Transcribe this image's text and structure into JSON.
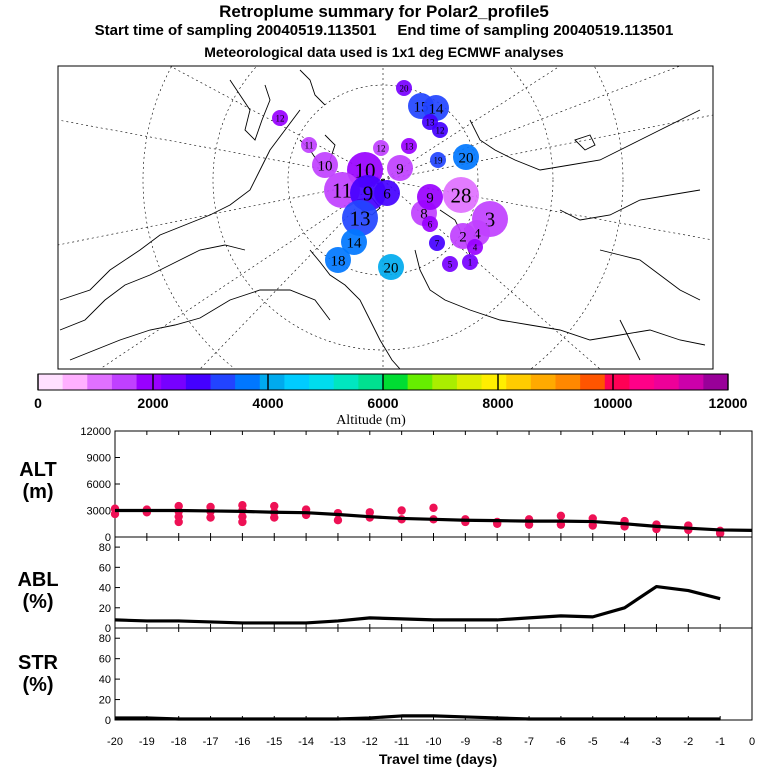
{
  "title": "Retroplume summary for Polar2_profile5",
  "sampling": {
    "start": "Start time of sampling 20040519.113501",
    "end": "End time of sampling 20040519.113501"
  },
  "met_note": "Meteorological data used is 1x1 deg ECMWF analyses",
  "colorbar": {
    "label": "Altitude (m)",
    "ticks": [
      "0",
      "2000",
      "4000",
      "6000",
      "8000",
      "10000",
      "12000"
    ],
    "colors": [
      "#ffe0ff",
      "#ffb0ff",
      "#e070ff",
      "#c040ff",
      "#9900ff",
      "#7700ff",
      "#4400ff",
      "#2244ff",
      "#0077ff",
      "#00aaee",
      "#00ccff",
      "#00ddee",
      "#00e6c0",
      "#00e090",
      "#00dd33",
      "#66ee00",
      "#aaee00",
      "#ddee00",
      "#ffee00",
      "#ffcc00",
      "#ffaa00",
      "#ff8800",
      "#ff5500",
      "#ff0055",
      "#ff0088",
      "#ee0099",
      "#cc00aa",
      "#990099"
    ]
  },
  "map": {
    "clusters": [
      {
        "label": "20",
        "alt": 2200,
        "size": "s"
      },
      {
        "label": "15",
        "alt": 3000,
        "size": "m"
      },
      {
        "label": "14",
        "alt": 3200,
        "size": "m"
      },
      {
        "label": "13",
        "alt": 2600,
        "size": "s"
      },
      {
        "label": "12",
        "alt": 2800,
        "size": "s"
      },
      {
        "label": "10",
        "alt": 1600,
        "size": "m"
      },
      {
        "label": "19",
        "alt": 3400,
        "size": "s"
      },
      {
        "label": "20",
        "alt": 3600,
        "size": "m"
      },
      {
        "label": "10",
        "alt": 1800,
        "size": "l"
      },
      {
        "label": "9",
        "alt": 1700,
        "size": "m"
      },
      {
        "label": "11",
        "alt": 1700,
        "size": "l"
      },
      {
        "label": "9",
        "alt": 2600,
        "size": "l"
      },
      {
        "label": "6",
        "alt": 2700,
        "size": "m"
      },
      {
        "label": "13",
        "alt": 3000,
        "size": "l"
      },
      {
        "label": "14",
        "alt": 3700,
        "size": "m"
      },
      {
        "label": "18",
        "alt": 3800,
        "size": "m"
      },
      {
        "label": "20",
        "alt": 3900,
        "size": "m"
      },
      {
        "label": "8",
        "alt": 1600,
        "size": "m"
      },
      {
        "label": "9",
        "alt": 1800,
        "size": "m"
      },
      {
        "label": "28",
        "alt": 1200,
        "size": "l"
      },
      {
        "label": "3",
        "alt": 1300,
        "size": "l"
      },
      {
        "label": "4",
        "alt": 1400,
        "size": "m"
      },
      {
        "label": "2",
        "alt": 1600,
        "size": "m"
      },
      {
        "label": "4",
        "alt": 2000,
        "size": "s"
      },
      {
        "label": "1",
        "alt": 2200,
        "size": "s"
      },
      {
        "label": "5",
        "alt": 2400,
        "size": "s"
      },
      {
        "label": "7",
        "alt": 2600,
        "size": "s"
      },
      {
        "label": "6",
        "alt": 1800,
        "size": "s"
      },
      {
        "label": "12",
        "alt": 1700,
        "size": "s"
      },
      {
        "label": "13",
        "alt": 1800,
        "size": "s"
      },
      {
        "label": "11",
        "alt": 1700,
        "size": "s"
      },
      {
        "label": "12",
        "alt": 1800,
        "size": "s"
      }
    ]
  },
  "chart_data": [
    {
      "type": "line",
      "title": "ALT (m)",
      "xlabel": "Travel time (days)",
      "x": [
        -20,
        -19,
        -18,
        -17,
        -16,
        -15,
        -14,
        -13,
        -12,
        -11,
        -10,
        -9,
        -8,
        -7,
        -6,
        -5,
        -4,
        -3,
        -2,
        -1,
        0
      ],
      "series": [
        {
          "name": "mean altitude",
          "values": [
            3000,
            3000,
            3000,
            2950,
            2900,
            2800,
            2750,
            2550,
            2300,
            2100,
            2000,
            1900,
            1850,
            1800,
            1800,
            1750,
            1500,
            1200,
            1000,
            800,
            750
          ]
        },
        {
          "name": "cluster altitudes",
          "type": "scatter",
          "points": [
            [
              -20,
              3200
            ],
            [
              -20,
              2600
            ],
            [
              -19,
              3100
            ],
            [
              -19,
              2800
            ],
            [
              -18,
              3500
            ],
            [
              -18,
              2900
            ],
            [
              -18,
              2300
            ],
            [
              -18,
              1700
            ],
            [
              -17,
              3400
            ],
            [
              -17,
              2900
            ],
            [
              -17,
              2200
            ],
            [
              -16,
              3600
            ],
            [
              -16,
              3000
            ],
            [
              -16,
              2300
            ],
            [
              -16,
              1700
            ],
            [
              -15,
              3500
            ],
            [
              -15,
              2800
            ],
            [
              -15,
              2200
            ],
            [
              -14,
              3100
            ],
            [
              -14,
              2500
            ],
            [
              -13,
              2700
            ],
            [
              -13,
              1900
            ],
            [
              -12,
              2800
            ],
            [
              -12,
              2200
            ],
            [
              -11,
              3000
            ],
            [
              -11,
              2000
            ],
            [
              -10,
              3300
            ],
            [
              -10,
              2000
            ],
            [
              -9,
              2000
            ],
            [
              -9,
              1700
            ],
            [
              -8,
              1700
            ],
            [
              -8,
              1500
            ],
            [
              -7,
              2000
            ],
            [
              -7,
              1400
            ],
            [
              -6,
              2400
            ],
            [
              -6,
              1400
            ],
            [
              -5,
              2100
            ],
            [
              -5,
              1300
            ],
            [
              -4,
              1800
            ],
            [
              -4,
              1200
            ],
            [
              -3,
              1400
            ],
            [
              -3,
              900
            ],
            [
              -2,
              1300
            ],
            [
              -2,
              800
            ],
            [
              -1,
              700
            ],
            [
              -1,
              400
            ]
          ]
        }
      ],
      "ylim": [
        0,
        12000
      ],
      "yticks": [
        "12000",
        "9000",
        "6000",
        "3000",
        "0"
      ]
    },
    {
      "type": "line",
      "title": "ABL (%)",
      "xlabel": "Travel time (days)",
      "x": [
        -20,
        -19,
        -18,
        -17,
        -16,
        -15,
        -14,
        -13,
        -12,
        -11,
        -10,
        -9,
        -8,
        -7,
        -6,
        -5,
        -4,
        -3,
        -2,
        -1
      ],
      "series": [
        {
          "name": "ABL fraction",
          "values": [
            8,
            7,
            7,
            6,
            5,
            5,
            5,
            7,
            10,
            9,
            8,
            8,
            8,
            10,
            12,
            11,
            20,
            41,
            37,
            29
          ]
        }
      ],
      "ylim": [
        0,
        90
      ],
      "yticks": [
        "80",
        "60",
        "40",
        "20",
        "0"
      ]
    },
    {
      "type": "line",
      "title": "STR (%)",
      "xlabel": "Travel time (days)",
      "x": [
        -20,
        -19,
        -18,
        -17,
        -16,
        -15,
        -14,
        -13,
        -12,
        -11,
        -10,
        -9,
        -8,
        -7,
        -6,
        -5,
        -4,
        -3,
        -2,
        -1
      ],
      "series": [
        {
          "name": "STR fraction",
          "values": [
            2,
            2,
            1,
            1,
            1,
            1,
            1,
            1,
            2,
            4,
            4,
            3,
            2,
            1,
            1,
            1,
            1,
            1,
            1,
            1
          ]
        }
      ],
      "ylim": [
        0,
        90
      ],
      "yticks": [
        "80",
        "60",
        "40",
        "20",
        "0"
      ]
    }
  ],
  "panel_labels": {
    "alt": [
      "ALT",
      "(m)"
    ],
    "abl": [
      "ABL",
      "(%)"
    ],
    "str": [
      "STR",
      "(%)"
    ]
  },
  "xticks": [
    "-20",
    "-19",
    "-18",
    "-17",
    "-16",
    "-15",
    "-14",
    "-13",
    "-12",
    "-11",
    "-10",
    "-9",
    "-8",
    "-7",
    "-6",
    "-5",
    "-4",
    "-3",
    "-2",
    "-1",
    "0"
  ],
  "colors": {
    "line": "#000000",
    "points": "#ee1155"
  }
}
